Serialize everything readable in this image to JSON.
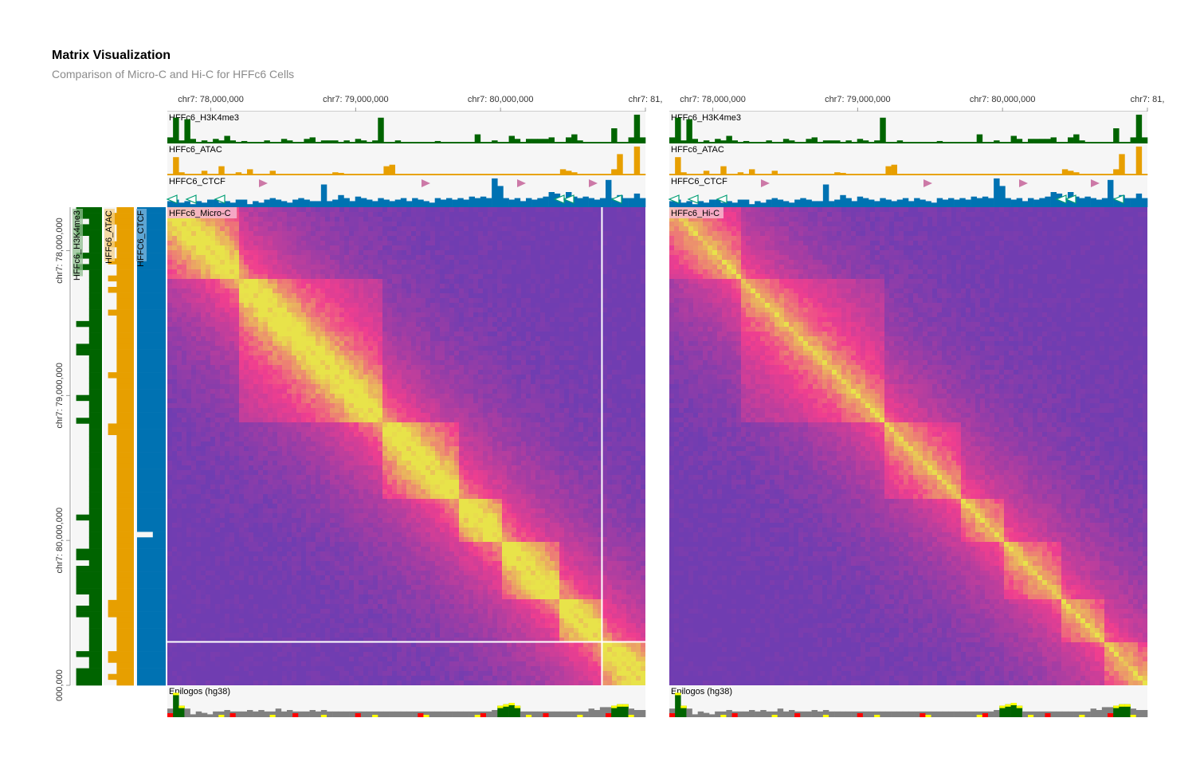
{
  "title": "Matrix Visualization",
  "subtitle": "Comparison of Micro-C and Hi-C for HFFc6 Cells",
  "colors": {
    "h3k4me3": "#006400",
    "atac": "#e79f00",
    "ctcf": "#0072b2",
    "track_bg": "#f6f6f6",
    "ctcf_forward": "#cc79a7",
    "ctcf_reverse": "#009e73",
    "matrix_low": "#6c3db2",
    "matrix_mid": "#f03e8f",
    "matrix_high": "#e8e34a"
  },
  "chart_data": [
    {
      "type": "heatmap",
      "name": "HFFc6_Micro-C",
      "x_ticks": [
        "chr7: 78,000,000",
        "chr7: 79,000,000",
        "chr7: 80,000,000",
        "chr7: 81,"
      ],
      "y_ticks": [
        "chr7: 78,000,000",
        "chr7: 79,000,000",
        "chr7: 80,000,000",
        "000,000"
      ],
      "tracks_top": [
        "HFFc6_H3K4me3",
        "HFFc6_ATAC",
        "HFFC6_CTCF"
      ],
      "tracks_left": [
        "HFFc6_H3K4me3",
        "HFFc6_ATAC",
        "HFFC6_CTCF"
      ],
      "track_bottom": "Epilogos (hg38)",
      "region": [
        "chr7: 77,700,000",
        "chr7: 81,000,000"
      ],
      "tads": [
        [
          77.7,
          78.2
        ],
        [
          78.2,
          79.2
        ],
        [
          79.2,
          79.7
        ],
        [
          79.7,
          80.0
        ],
        [
          80.0,
          80.4
        ],
        [
          80.4,
          80.7
        ],
        [
          80.7,
          81.0
        ]
      ],
      "crosshair": [
        80.7,
        80.7
      ]
    },
    {
      "type": "heatmap",
      "name": "HFFc6_Hi-C",
      "x_ticks": [
        "chr7: 78,000,000",
        "chr7: 79,000,000",
        "chr7: 80,000,000",
        "chr7: 81,"
      ],
      "tracks_top": [
        "HFFc6_H3K4me3",
        "HFFc6_ATAC",
        "HFFC6_CTCF"
      ],
      "track_bottom": "Epilogos (hg38)",
      "region": [
        "chr7: 77,700,000",
        "chr7: 81,000,000"
      ],
      "tads": [
        [
          77.7,
          78.2
        ],
        [
          78.2,
          79.2
        ],
        [
          79.2,
          79.7
        ],
        [
          79.7,
          80.0
        ],
        [
          80.0,
          80.4
        ],
        [
          80.4,
          80.7
        ],
        [
          80.7,
          81.0
        ]
      ]
    }
  ],
  "tracks": {
    "h3k4me3": [
      0.2,
      0.85,
      0.1,
      0.8,
      0.15,
      0.05,
      0.1,
      0.05,
      0.15,
      0.1,
      0.25,
      0.1,
      0.05,
      0.08,
      0.05,
      0.05,
      0.05,
      0.1,
      0.05,
      0.05,
      0.15,
      0.1,
      0.05,
      0.05,
      0.15,
      0.2,
      0.05,
      0.1,
      0.1,
      0.1,
      0.05,
      0.1,
      0.05,
      0.15,
      0.1,
      0.05,
      0.1,
      0.85,
      0.05,
      0.05,
      0.1,
      0.05,
      0.05,
      0.05,
      0.05,
      0.05,
      0.05,
      0.08,
      0.05,
      0.05,
      0.05,
      0.05,
      0.05,
      0.05,
      0.3,
      0.05,
      0.05,
      0.1,
      0.05,
      0.05,
      0.25,
      0.15,
      0.05,
      0.15,
      0.15,
      0.15,
      0.15,
      0.2,
      0.05,
      0.05,
      0.2,
      0.3,
      0.1,
      0.05,
      0.05,
      0.05,
      0.05,
      0.05,
      0.5,
      0.05,
      0.05,
      0.2,
      0.95,
      0.2
    ],
    "atac": [
      0.05,
      0.6,
      0.1,
      0.05,
      0.05,
      0.05,
      0.15,
      0.05,
      0.05,
      0.3,
      0.05,
      0.05,
      0.1,
      0.05,
      0.2,
      0.05,
      0.05,
      0.05,
      0.15,
      0.05,
      0.05,
      0.05,
      0.05,
      0.05,
      0.05,
      0.05,
      0.05,
      0.05,
      0.05,
      0.1,
      0.08,
      0.05,
      0.05,
      0.05,
      0.05,
      0.05,
      0.05,
      0.05,
      0.3,
      0.35,
      0.05,
      0.05,
      0.05,
      0.05,
      0.05,
      0.05,
      0.05,
      0.05,
      0.05,
      0.05,
      0.05,
      0.05,
      0.05,
      0.05,
      0.05,
      0.05,
      0.05,
      0.05,
      0.05,
      0.05,
      0.05,
      0.05,
      0.05,
      0.05,
      0.05,
      0.05,
      0.05,
      0.05,
      0.05,
      0.2,
      0.15,
      0.1,
      0.05,
      0.05,
      0.05,
      0.05,
      0.05,
      0.05,
      0.2,
      0.7,
      0.05,
      0.05,
      0.95,
      0.05
    ],
    "ctcf": [
      0.2,
      0.25,
      0.15,
      0.2,
      0.1,
      0.2,
      0.15,
      0.25,
      0.25,
      0.15,
      0.2,
      0.15,
      0.25,
      0.25,
      0.1,
      0.2,
      0.15,
      0.25,
      0.3,
      0.25,
      0.2,
      0.15,
      0.25,
      0.3,
      0.25,
      0.2,
      0.2,
      0.75,
      0.2,
      0.25,
      0.4,
      0.3,
      0.2,
      0.35,
      0.3,
      0.25,
      0.2,
      0.3,
      0.25,
      0.2,
      0.25,
      0.3,
      0.2,
      0.3,
      0.25,
      0.2,
      0.15,
      0.3,
      0.25,
      0.3,
      0.25,
      0.3,
      0.25,
      0.35,
      0.3,
      0.35,
      0.3,
      0.95,
      0.7,
      0.3,
      0.25,
      0.3,
      0.2,
      0.3,
      0.25,
      0.3,
      0.35,
      0.5,
      0.45,
      0.3,
      0.5,
      0.35,
      0.3,
      0.35,
      0.3,
      0.25,
      0.3,
      0.9,
      0.3,
      0.4,
      0.3,
      0.3,
      0.45,
      0.3
    ],
    "epilogos": [
      0.3,
      0.85,
      0.4,
      0.3,
      0.1,
      0.2,
      0.15,
      0.1,
      0.2,
      0.2,
      0.25,
      0.2,
      0.2,
      0.2,
      0.25,
      0.2,
      0.25,
      0.2,
      0.2,
      0.3,
      0.2,
      0.25,
      0.2,
      0.2,
      0.2,
      0.25,
      0.2,
      0.25,
      0.2,
      0.2,
      0.2,
      0.2,
      0.2,
      0.2,
      0.2,
      0.2,
      0.2,
      0.2,
      0.2,
      0.2,
      0.2,
      0.2,
      0.2,
      0.2,
      0.2,
      0.2,
      0.2,
      0.2,
      0.2,
      0.2,
      0.2,
      0.2,
      0.2,
      0.2,
      0.2,
      0.2,
      0.2,
      0.25,
      0.4,
      0.45,
      0.5,
      0.4,
      0.2,
      0.2,
      0.2,
      0.2,
      0.2,
      0.2,
      0.2,
      0.2,
      0.2,
      0.2,
      0.2,
      0.2,
      0.3,
      0.25,
      0.35,
      0.35,
      0.4,
      0.45,
      0.45,
      0.3,
      0.25,
      0.25
    ],
    "ctcf_forward_motifs": [
      0.2,
      0.54,
      0.74,
      0.89
    ],
    "ctcf_reverse_motifs": [
      0.01,
      0.05,
      0.11,
      0.82,
      0.84,
      0.94
    ]
  }
}
